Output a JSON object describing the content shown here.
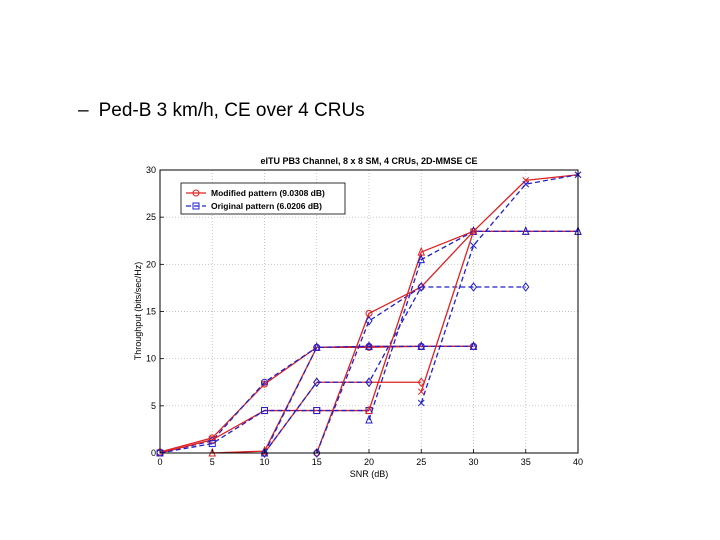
{
  "slide": {
    "bullet_dash": "–",
    "bullet_text": "Ped-B 3 km/h, CE over 4 CRUs"
  },
  "chart_data": {
    "type": "line",
    "title": "eITU PB3 Channel, 8 x 8 SM, 4 CRUs, 2D-MMSE CE",
    "xlabel": "SNR (dB)",
    "ylabel": "Throughput (bits/sec/Hz)",
    "xlim": [
      0,
      40
    ],
    "ylim": [
      0,
      30
    ],
    "xticks": [
      0,
      5,
      10,
      15,
      20,
      25,
      30,
      35,
      40
    ],
    "yticks": [
      0,
      5,
      10,
      15,
      20,
      25,
      30
    ],
    "grid": true,
    "legend_position": "top-left",
    "legend": [
      {
        "label": "Modified pattern (9.0308 dB)",
        "color": "#e02020",
        "marker": "circle",
        "dash": "solid"
      },
      {
        "label": "Original pattern (6.0206 dB)",
        "color": "#2020cc",
        "marker": "square",
        "dash": "dashed"
      }
    ],
    "series": [
      {
        "color": "#e02020",
        "dash": "solid",
        "marker": "circle",
        "points": [
          [
            0,
            0.1
          ],
          [
            5,
            1.6
          ],
          [
            10,
            7.3
          ],
          [
            15,
            11.2
          ],
          [
            20,
            11.2
          ],
          [
            25,
            11.3
          ],
          [
            30,
            11.3
          ]
        ]
      },
      {
        "color": "#2020cc",
        "dash": "dashed",
        "marker": "circle",
        "points": [
          [
            0,
            0
          ],
          [
            5,
            1.3
          ],
          [
            10,
            7.5
          ],
          [
            15,
            11.2
          ],
          [
            20,
            11.3
          ],
          [
            25,
            11.3
          ],
          [
            30,
            11.3
          ]
        ]
      },
      {
        "color": "#e02020",
        "dash": "solid",
        "marker": "square",
        "points": [
          [
            0,
            0
          ],
          [
            5,
            1.4
          ],
          [
            10,
            4.5
          ],
          [
            15,
            4.5
          ],
          [
            20,
            4.5
          ]
        ]
      },
      {
        "color": "#2020cc",
        "dash": "dashed",
        "marker": "square",
        "points": [
          [
            0,
            0
          ],
          [
            5,
            1.0
          ],
          [
            10,
            4.5
          ],
          [
            15,
            4.5
          ],
          [
            20,
            4.5
          ]
        ]
      },
      {
        "color": "#e02020",
        "dash": "solid",
        "marker": "triangle",
        "points": [
          [
            5,
            0
          ],
          [
            10,
            0.2
          ],
          [
            15,
            11.2
          ],
          [
            20,
            11.3
          ],
          [
            25,
            11.3
          ],
          [
            30,
            11.3
          ]
        ]
      },
      {
        "color": "#2020cc",
        "dash": "dashed",
        "marker": "triangle",
        "points": [
          [
            10,
            0
          ],
          [
            15,
            11.2
          ],
          [
            20,
            11.3
          ],
          [
            25,
            11.3
          ],
          [
            30,
            11.3
          ]
        ]
      },
      {
        "color": "#e02020",
        "dash": "solid",
        "marker": "diamond",
        "points": [
          [
            10,
            0
          ],
          [
            15,
            7.5
          ],
          [
            20,
            7.5
          ],
          [
            25,
            7.5
          ]
        ]
      },
      {
        "color": "#2020cc",
        "dash": "dashed",
        "marker": "diamond",
        "points": [
          [
            10,
            0
          ],
          [
            15,
            7.5
          ],
          [
            20,
            7.5
          ],
          [
            25,
            17.6
          ],
          [
            30,
            17.6
          ],
          [
            35,
            17.6
          ]
        ]
      },
      {
        "color": "#e02020",
        "dash": "solid",
        "marker": "circle",
        "points": [
          [
            15,
            0
          ],
          [
            20,
            14.8
          ],
          [
            25,
            17.6
          ],
          [
            30,
            23.5
          ]
        ]
      },
      {
        "color": "#2020cc",
        "dash": "dashed",
        "marker": "diamond",
        "points": [
          [
            15,
            0
          ],
          [
            20,
            14.0
          ],
          [
            25,
            17.6
          ]
        ]
      },
      {
        "color": "#e02020",
        "dash": "solid",
        "marker": "triangle",
        "points": [
          [
            20,
            4.5
          ],
          [
            25,
            21.3
          ],
          [
            30,
            23.5
          ],
          [
            35,
            23.5
          ],
          [
            40,
            23.5
          ]
        ]
      },
      {
        "color": "#2020cc",
        "dash": "dashed",
        "marker": "triangle",
        "points": [
          [
            20,
            3.5
          ],
          [
            25,
            20.5
          ],
          [
            30,
            23.5
          ],
          [
            35,
            23.5
          ],
          [
            40,
            23.5
          ]
        ]
      },
      {
        "color": "#e02020",
        "dash": "solid",
        "marker": "x",
        "points": [
          [
            25,
            6.5
          ],
          [
            30,
            23.5
          ],
          [
            35,
            28.9
          ],
          [
            40,
            29.5
          ]
        ]
      },
      {
        "color": "#2020cc",
        "dash": "dashed",
        "marker": "x",
        "points": [
          [
            25,
            5.3
          ],
          [
            30,
            22.0
          ],
          [
            35,
            28.5
          ],
          [
            40,
            29.5
          ]
        ]
      }
    ]
  }
}
